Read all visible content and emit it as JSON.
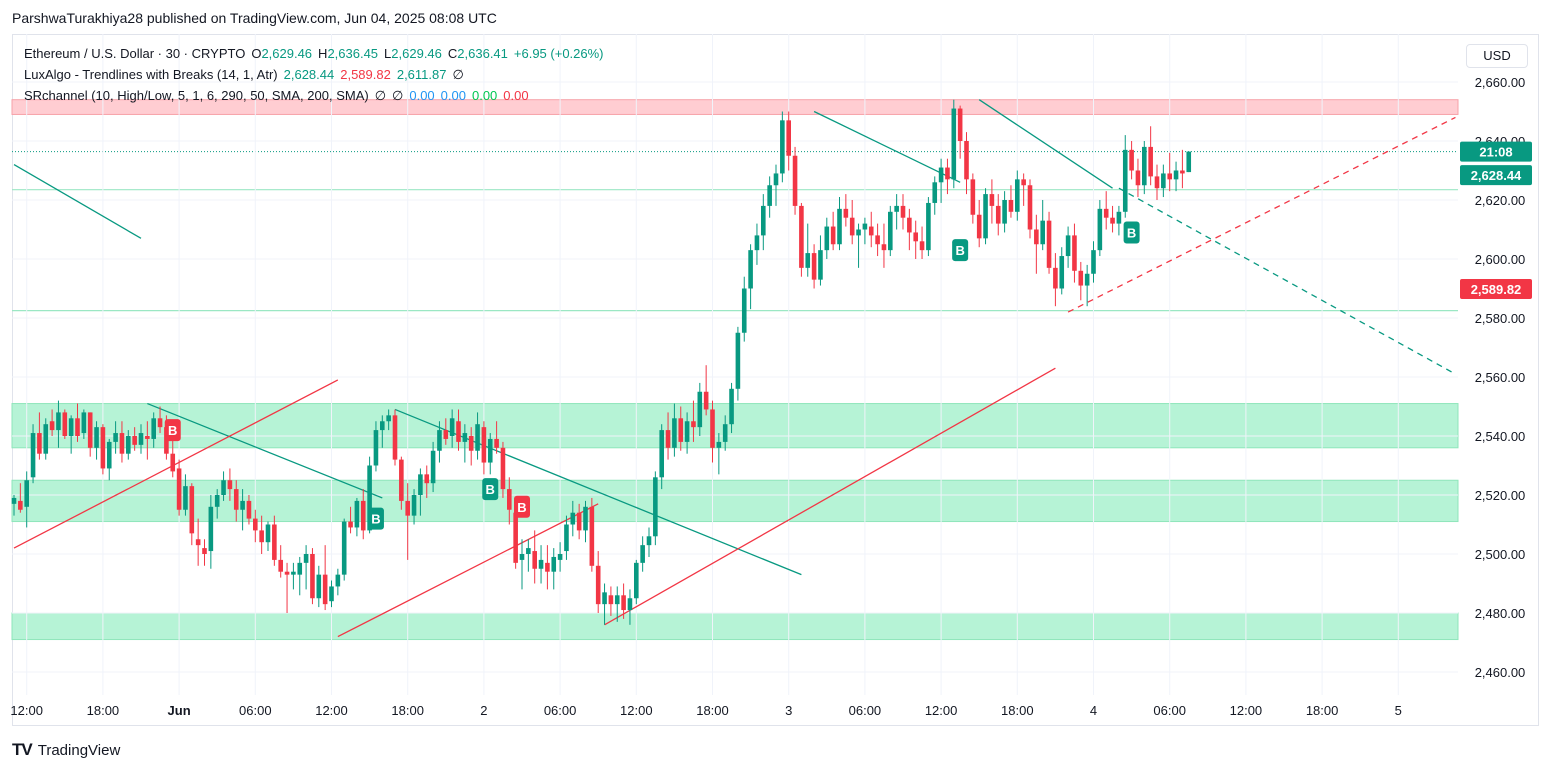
{
  "publisher": "ParshwaTurakhiya28 published on TradingView.com, Jun 04, 2025 08:08 UTC",
  "legend": {
    "symbol": "Ethereum / U.S. Dollar · 30 · CRYPTO",
    "o_label": "O",
    "o": "2,629.46",
    "h_label": "H",
    "h": "2,636.45",
    "l_label": "L",
    "l": "2,629.46",
    "c_label": "C",
    "c": "2,636.41",
    "change": "+6.95 (+0.26%)",
    "ind1_name": "LuxAlgo - Trendlines with Breaks (14, 1, Atr)",
    "ind1_v1": "2,628.44",
    "ind1_v2": "2,589.82",
    "ind1_v3": "2,611.87",
    "ind1_v4": "∅",
    "ind2_name": "SRchannel (10, High/Low, 5, 1, 6, 290, 50, SMA, 200, SMA)",
    "ind2_v1": "∅",
    "ind2_v2": "∅",
    "ind2_v3": "0.00",
    "ind2_v4": "0.00",
    "ind2_v5": "0.00",
    "ind2_v6": "0.00"
  },
  "currency_button": "USD",
  "footer_logo": "TV",
  "footer_text": "TradingView",
  "colors": {
    "up": "#089981",
    "down": "#f23645",
    "zone_green": "#9ef0c9",
    "zone_red": "#ffcdd2"
  },
  "chart_data": {
    "type": "candlestick",
    "y_axis": {
      "ticks": [
        2460,
        2480,
        2500,
        2520,
        2540,
        2560,
        2580,
        2600,
        2620,
        2640,
        2660
      ],
      "tick_labels": [
        "2,460.00",
        "2,480.00",
        "2,500.00",
        "2,520.00",
        "2,540.00",
        "2,560.00",
        "2,580.00",
        "2,600.00",
        "2,620.00",
        "2,640.00",
        "2,660.00"
      ],
      "range": [
        2456,
        2670
      ]
    },
    "x_axis": {
      "labels": [
        "12:00",
        "18:00",
        "Jun",
        "06:00",
        "12:00",
        "18:00",
        "2",
        "06:00",
        "12:00",
        "18:00",
        "3",
        "06:00",
        "12:00",
        "18:00",
        "4",
        "06:00",
        "12:00",
        "18:00",
        "5"
      ],
      "bars_per_label": 12,
      "first_label_bar": 2
    },
    "price_labels": [
      {
        "text": "21:08",
        "value": 2636.41,
        "color": "#089981"
      },
      {
        "text": "2,628.44",
        "value": 2628.44,
        "color": "#089981"
      },
      {
        "text": "2,589.82",
        "value": 2589.82,
        "color": "#f23645"
      }
    ],
    "current_price": 2636.41,
    "sr_zones": [
      {
        "from": 2649,
        "to": 2654,
        "color": "#ffcdd2"
      },
      {
        "from": 2536,
        "to": 2551,
        "color": "#b6f3d6"
      },
      {
        "from": 2511,
        "to": 2525,
        "color": "#b6f3d6"
      },
      {
        "from": 2471,
        "to": 2480,
        "color": "#b6f3d6"
      }
    ],
    "sr_lines": [
      2623.5,
      2582.5
    ],
    "trendlines": [
      {
        "x1": 0,
        "y1": 2632,
        "x2": 20,
        "y2": 2607,
        "color": "#089981",
        "dashed": false
      },
      {
        "x1": 21,
        "y1": 2551,
        "x2": 58,
        "y2": 2519,
        "color": "#089981",
        "dashed": false
      },
      {
        "x1": 0,
        "y1": 2502,
        "x2": 51,
        "y2": 2559,
        "color": "#f23645",
        "dashed": false
      },
      {
        "x1": 60,
        "y1": 2549,
        "x2": 124,
        "y2": 2493,
        "color": "#089981",
        "dashed": false
      },
      {
        "x1": 51,
        "y1": 2472,
        "x2": 92,
        "y2": 2517,
        "color": "#f23645",
        "dashed": false
      },
      {
        "x1": 93,
        "y1": 2476,
        "x2": 164,
        "y2": 2563,
        "color": "#f23645",
        "dashed": false
      },
      {
        "x1": 126,
        "y1": 2650,
        "x2": 149,
        "y2": 2626,
        "color": "#089981",
        "dashed": false
      },
      {
        "x1": 152,
        "y1": 2654,
        "x2": 173,
        "y2": 2624,
        "color": "#089981",
        "dashed": false
      },
      {
        "x1": 174,
        "y1": 2624,
        "x2": 227,
        "y2": 2561,
        "color": "#089981",
        "dashed": true
      },
      {
        "x1": 166,
        "y1": 2582,
        "x2": 227,
        "y2": 2648,
        "color": "#f23645",
        "dashed": true
      }
    ],
    "break_markers": [
      {
        "bar": 25,
        "price": 2542,
        "color": "#f23645",
        "label": "B"
      },
      {
        "bar": 57,
        "price": 2512,
        "color": "#089981",
        "label": "B"
      },
      {
        "bar": 75,
        "price": 2522,
        "color": "#089981",
        "label": "B"
      },
      {
        "bar": 80,
        "price": 2516,
        "color": "#f23645",
        "label": "B"
      },
      {
        "bar": 149,
        "price": 2603,
        "color": "#089981",
        "label": "B"
      },
      {
        "bar": 176,
        "price": 2609,
        "color": "#089981",
        "label": "B"
      }
    ],
    "candles": [
      [
        2517,
        2520,
        2513,
        2519
      ],
      [
        2518,
        2524,
        2514,
        2515
      ],
      [
        2516,
        2528,
        2509,
        2525
      ],
      [
        2526,
        2544,
        2524,
        2541
      ],
      [
        2541,
        2548,
        2532,
        2534
      ],
      [
        2534,
        2546,
        2532,
        2544
      ],
      [
        2545,
        2549,
        2540,
        2542
      ],
      [
        2542,
        2552,
        2536,
        2548
      ],
      [
        2548,
        2549,
        2539,
        2540
      ],
      [
        2540,
        2547,
        2534,
        2546
      ],
      [
        2546,
        2551,
        2538,
        2540
      ],
      [
        2541,
        2549,
        2539,
        2548
      ],
      [
        2548,
        2548,
        2533,
        2536
      ],
      [
        2536,
        2545,
        2532,
        2543
      ],
      [
        2543,
        2544,
        2527,
        2529
      ],
      [
        2529,
        2539,
        2525,
        2538
      ],
      [
        2538,
        2545,
        2534,
        2541
      ],
      [
        2541,
        2545,
        2531,
        2534
      ],
      [
        2534,
        2542,
        2532,
        2540
      ],
      [
        2540,
        2543,
        2535,
        2537
      ],
      [
        2537,
        2544,
        2534,
        2541
      ],
      [
        2540,
        2545,
        2532,
        2539
      ],
      [
        2539,
        2548,
        2536,
        2546
      ],
      [
        2546,
        2550,
        2541,
        2543
      ],
      [
        2543,
        2547,
        2532,
        2534
      ],
      [
        2534,
        2545,
        2526,
        2528
      ],
      [
        2529,
        2532,
        2513,
        2515
      ],
      [
        2515,
        2527,
        2513,
        2523
      ],
      [
        2523,
        2524,
        2503,
        2507
      ],
      [
        2505,
        2512,
        2496,
        2503
      ],
      [
        2502,
        2505,
        2496,
        2500
      ],
      [
        2501,
        2520,
        2495,
        2516
      ],
      [
        2516,
        2522,
        2512,
        2520
      ],
      [
        2520,
        2528,
        2518,
        2525
      ],
      [
        2525,
        2529,
        2518,
        2522
      ],
      [
        2522,
        2525,
        2511,
        2515
      ],
      [
        2515,
        2522,
        2508,
        2518
      ],
      [
        2518,
        2520,
        2510,
        2512
      ],
      [
        2512,
        2515,
        2504,
        2508
      ],
      [
        2508,
        2513,
        2500,
        2504
      ],
      [
        2504,
        2511,
        2501,
        2510
      ],
      [
        2510,
        2513,
        2496,
        2498
      ],
      [
        2498,
        2503,
        2492,
        2494
      ],
      [
        2494,
        2497,
        2480,
        2493
      ],
      [
        2493,
        2497,
        2488,
        2494
      ],
      [
        2493,
        2499,
        2486,
        2497
      ],
      [
        2497,
        2503,
        2488,
        2500
      ],
      [
        2500,
        2502,
        2483,
        2485
      ],
      [
        2485,
        2496,
        2482,
        2493
      ],
      [
        2493,
        2503,
        2481,
        2483
      ],
      [
        2484,
        2491,
        2482,
        2489
      ],
      [
        2489,
        2495,
        2486,
        2493
      ],
      [
        2493,
        2512,
        2491,
        2511
      ],
      [
        2511,
        2516,
        2507,
        2509
      ],
      [
        2509,
        2519,
        2506,
        2518
      ],
      [
        2518,
        2522,
        2505,
        2508
      ],
      [
        2508,
        2533,
        2507,
        2530
      ],
      [
        2530,
        2545,
        2528,
        2542
      ],
      [
        2542,
        2547,
        2536,
        2545
      ],
      [
        2545,
        2549,
        2542,
        2547
      ],
      [
        2547,
        2549,
        2530,
        2532
      ],
      [
        2532,
        2533,
        2515,
        2518
      ],
      [
        2518,
        2524,
        2498,
        2513
      ],
      [
        2513,
        2522,
        2510,
        2520
      ],
      [
        2520,
        2529,
        2513,
        2527
      ],
      [
        2527,
        2530,
        2519,
        2524
      ],
      [
        2524,
        2538,
        2521,
        2535
      ],
      [
        2535,
        2545,
        2531,
        2542
      ],
      [
        2542,
        2546,
        2537,
        2539
      ],
      [
        2540,
        2549,
        2536,
        2546
      ],
      [
        2545,
        2549,
        2535,
        2538
      ],
      [
        2538,
        2544,
        2531,
        2541
      ],
      [
        2540,
        2543,
        2530,
        2535
      ],
      [
        2535,
        2548,
        2532,
        2544
      ],
      [
        2543,
        2545,
        2527,
        2531
      ],
      [
        2531,
        2541,
        2527,
        2539
      ],
      [
        2539,
        2545,
        2534,
        2536
      ],
      [
        2536,
        2538,
        2519,
        2522
      ],
      [
        2522,
        2526,
        2510,
        2515
      ],
      [
        2514,
        2517,
        2495,
        2497
      ],
      [
        2498,
        2505,
        2488,
        2500
      ],
      [
        2500,
        2505,
        2494,
        2502
      ],
      [
        2501,
        2508,
        2490,
        2495
      ],
      [
        2495,
        2503,
        2490,
        2498
      ],
      [
        2497,
        2503,
        2488,
        2494
      ],
      [
        2494,
        2502,
        2488,
        2499
      ],
      [
        2498,
        2504,
        2494,
        2500
      ],
      [
        2501,
        2513,
        2498,
        2510
      ],
      [
        2510,
        2518,
        2506,
        2514
      ],
      [
        2514,
        2517,
        2505,
        2508
      ],
      [
        2508,
        2518,
        2504,
        2516
      ],
      [
        2516,
        2519,
        2494,
        2496
      ],
      [
        2496,
        2501,
        2480,
        2483
      ],
      [
        2483,
        2490,
        2476,
        2487
      ],
      [
        2486,
        2489,
        2479,
        2483
      ],
      [
        2483,
        2489,
        2477,
        2486
      ],
      [
        2486,
        2490,
        2478,
        2481
      ],
      [
        2481,
        2488,
        2476,
        2485
      ],
      [
        2485,
        2498,
        2483,
        2497
      ],
      [
        2497,
        2506,
        2494,
        2503
      ],
      [
        2503,
        2509,
        2499,
        2506
      ],
      [
        2506,
        2528,
        2503,
        2526
      ],
      [
        2526,
        2544,
        2522,
        2542
      ],
      [
        2542,
        2548,
        2532,
        2536
      ],
      [
        2536,
        2551,
        2533,
        2546
      ],
      [
        2546,
        2550,
        2535,
        2538
      ],
      [
        2538,
        2548,
        2534,
        2545
      ],
      [
        2545,
        2552,
        2538,
        2543
      ],
      [
        2543,
        2558,
        2540,
        2555
      ],
      [
        2555,
        2564,
        2547,
        2549
      ],
      [
        2549,
        2552,
        2531,
        2536
      ],
      [
        2536,
        2541,
        2527,
        2538
      ],
      [
        2538,
        2547,
        2535,
        2544
      ],
      [
        2544,
        2558,
        2541,
        2556
      ],
      [
        2556,
        2577,
        2552,
        2575
      ],
      [
        2575,
        2594,
        2572,
        2590
      ],
      [
        2590,
        2605,
        2583,
        2603
      ],
      [
        2603,
        2612,
        2598,
        2608
      ],
      [
        2608,
        2622,
        2603,
        2618
      ],
      [
        2618,
        2628,
        2614,
        2625
      ],
      [
        2625,
        2632,
        2618,
        2629
      ],
      [
        2629,
        2650,
        2626,
        2647
      ],
      [
        2647,
        2650,
        2630,
        2635
      ],
      [
        2635,
        2638,
        2615,
        2618
      ],
      [
        2618,
        2619,
        2594,
        2597
      ],
      [
        2597,
        2612,
        2594,
        2602
      ],
      [
        2602,
        2605,
        2590,
        2593
      ],
      [
        2593,
        2608,
        2591,
        2603
      ],
      [
        2603,
        2614,
        2600,
        2611
      ],
      [
        2611,
        2616,
        2603,
        2605
      ],
      [
        2605,
        2621,
        2603,
        2617
      ],
      [
        2617,
        2622,
        2611,
        2614
      ],
      [
        2614,
        2620,
        2605,
        2608
      ],
      [
        2608,
        2612,
        2597,
        2610
      ],
      [
        2610,
        2614,
        2605,
        2612
      ],
      [
        2611,
        2616,
        2604,
        2608
      ],
      [
        2608,
        2612,
        2601,
        2605
      ],
      [
        2605,
        2612,
        2597,
        2603
      ],
      [
        2603,
        2618,
        2601,
        2616
      ],
      [
        2616,
        2622,
        2610,
        2618
      ],
      [
        2618,
        2622,
        2610,
        2614
      ],
      [
        2614,
        2617,
        2603,
        2609
      ],
      [
        2609,
        2613,
        2600,
        2606
      ],
      [
        2606,
        2611,
        2600,
        2603
      ],
      [
        2603,
        2621,
        2601,
        2619
      ],
      [
        2619,
        2628,
        2615,
        2626
      ],
      [
        2626,
        2634,
        2619,
        2631
      ],
      [
        2631,
        2634,
        2622,
        2627
      ],
      [
        2627,
        2654,
        2624,
        2651
      ],
      [
        2651,
        2652,
        2634,
        2640
      ],
      [
        2640,
        2643,
        2622,
        2627
      ],
      [
        2627,
        2629,
        2612,
        2615
      ],
      [
        2615,
        2620,
        2604,
        2607
      ],
      [
        2607,
        2624,
        2605,
        2622
      ],
      [
        2622,
        2627,
        2612,
        2618
      ],
      [
        2618,
        2622,
        2608,
        2612
      ],
      [
        2612,
        2623,
        2609,
        2620
      ],
      [
        2620,
        2625,
        2614,
        2616
      ],
      [
        2616,
        2630,
        2613,
        2627
      ],
      [
        2627,
        2629,
        2618,
        2625
      ],
      [
        2625,
        2627,
        2607,
        2610
      ],
      [
        2610,
        2615,
        2595,
        2605
      ],
      [
        2605,
        2620,
        2603,
        2613
      ],
      [
        2613,
        2616,
        2595,
        2597
      ],
      [
        2597,
        2602,
        2584,
        2590
      ],
      [
        2590,
        2604,
        2588,
        2601
      ],
      [
        2601,
        2611,
        2597,
        2608
      ],
      [
        2608,
        2612,
        2592,
        2596
      ],
      [
        2596,
        2599,
        2586,
        2591
      ],
      [
        2591,
        2598,
        2584,
        2595
      ],
      [
        2595,
        2606,
        2592,
        2603
      ],
      [
        2603,
        2620,
        2601,
        2617
      ],
      [
        2617,
        2623,
        2610,
        2614
      ],
      [
        2614,
        2618,
        2609,
        2612
      ],
      [
        2612,
        2618,
        2608,
        2616
      ],
      [
        2616,
        2642,
        2614,
        2637
      ],
      [
        2637,
        2640,
        2627,
        2630
      ],
      [
        2630,
        2634,
        2621,
        2625
      ],
      [
        2625,
        2640,
        2622,
        2638
      ],
      [
        2638,
        2645,
        2625,
        2628
      ],
      [
        2628,
        2632,
        2620,
        2624
      ],
      [
        2624,
        2632,
        2621,
        2629
      ],
      [
        2629,
        2636,
        2623,
        2627
      ],
      [
        2627,
        2633,
        2623,
        2630
      ],
      [
        2630,
        2637,
        2624,
        2629
      ],
      [
        2629.46,
        2636.45,
        2629.46,
        2636.41
      ]
    ]
  }
}
